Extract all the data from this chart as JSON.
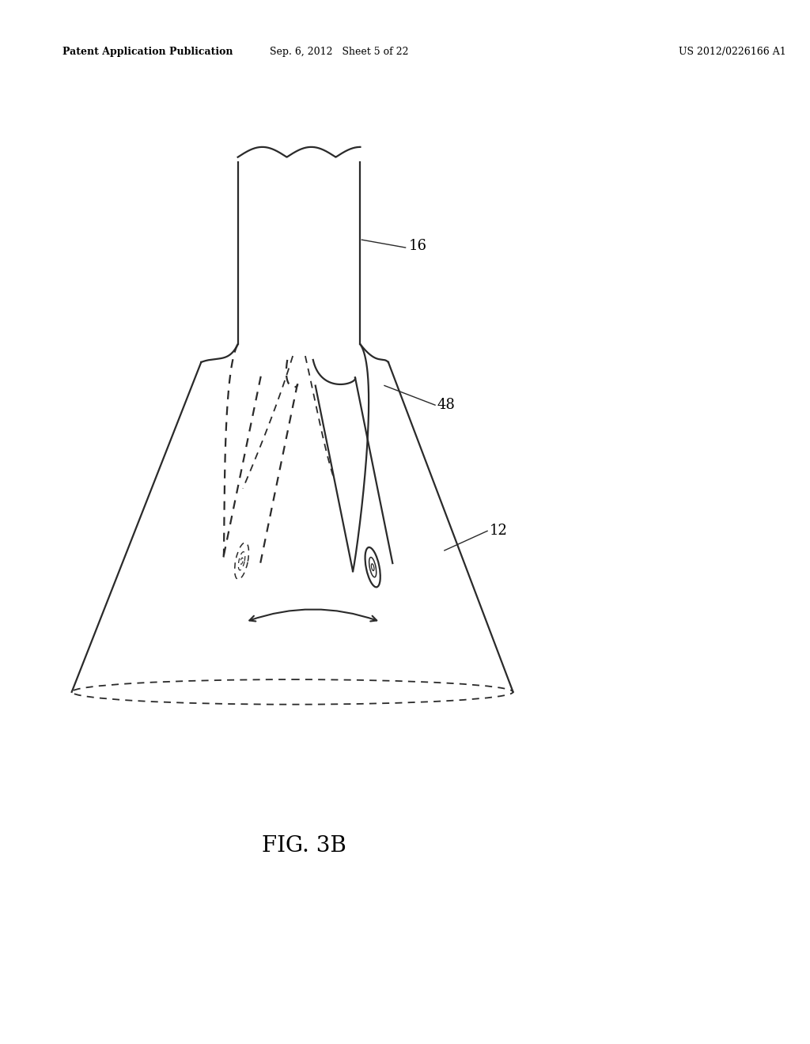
{
  "bg_color": "#ffffff",
  "line_color": "#2a2a2a",
  "header_left": "Patent Application Publication",
  "header_mid": "Sep. 6, 2012   Sheet 5 of 22",
  "header_right": "US 2012/0226166 A1",
  "fig_label": "FIG. 3B",
  "label_16": "16",
  "label_48": "48",
  "label_12": "12",
  "fig_width": 10.24,
  "fig_height": 13.2,
  "dpi": 100
}
